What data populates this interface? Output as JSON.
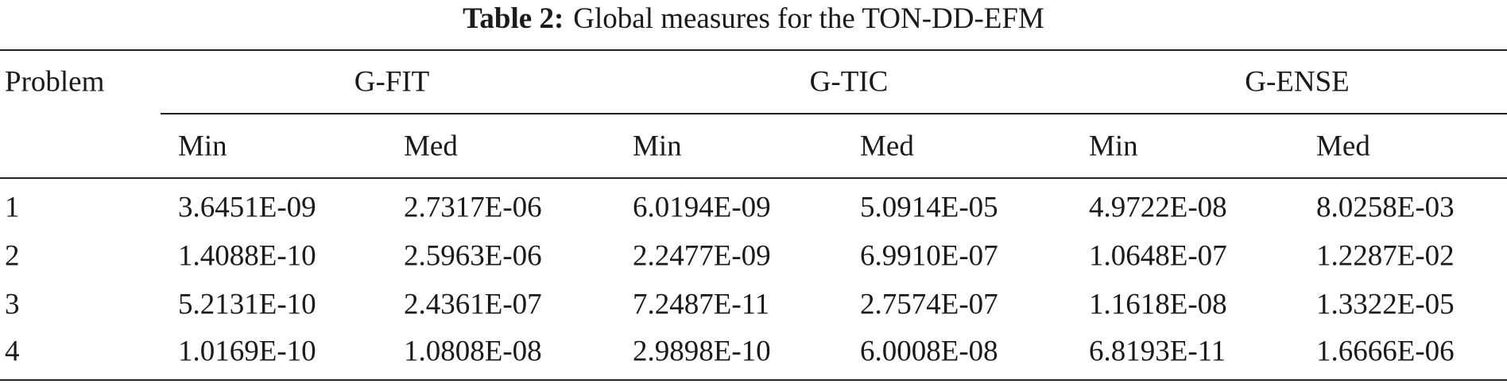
{
  "caption": {
    "label": "Table 2:",
    "text": "Global measures for the TON-DD-EFM"
  },
  "table": {
    "corner": "Problem",
    "groups": [
      "G-FIT",
      "G-TIC",
      "G-ENSE"
    ],
    "subheaders": [
      "Min",
      "Med",
      "Min",
      "Med",
      "Min",
      "Med"
    ],
    "rows": [
      [
        "1",
        "3.6451E-09",
        "2.7317E-06",
        "6.0194E-09",
        "5.0914E-05",
        "4.9722E-08",
        "8.0258E-03"
      ],
      [
        "2",
        "1.4088E-10",
        "2.5963E-06",
        "2.2477E-09",
        "6.9910E-07",
        "1.0648E-07",
        "1.2287E-02"
      ],
      [
        "3",
        "5.2131E-10",
        "2.4361E-07",
        "7.2487E-11",
        "2.7574E-07",
        "1.1618E-08",
        "1.3322E-05"
      ],
      [
        "4",
        "1.0169E-10",
        "1.0808E-08",
        "2.9898E-10",
        "6.0008E-08",
        "6.8193E-11",
        "1.6666E-06"
      ]
    ]
  }
}
